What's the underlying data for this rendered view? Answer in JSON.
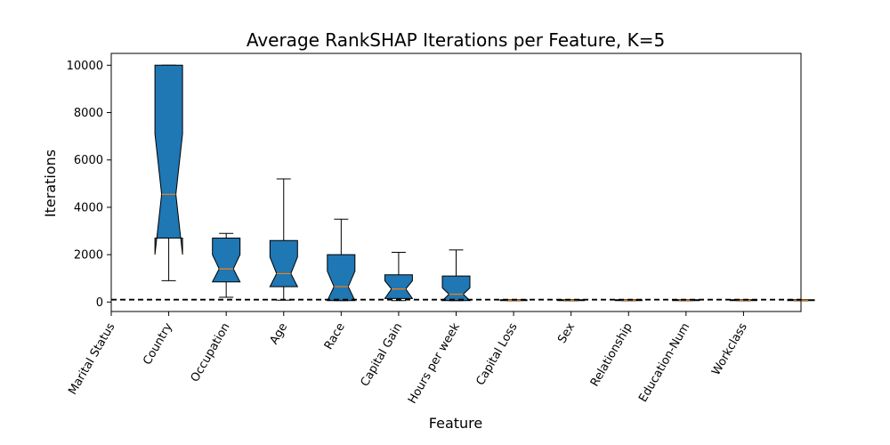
{
  "chart_data": {
    "type": "boxplot",
    "title": "Average RankSHAP Iterations per Feature, K=5",
    "xlabel": "Feature",
    "ylabel": "Iterations",
    "ylim": [
      -400,
      10500
    ],
    "yticks": [
      0,
      2000,
      4000,
      6000,
      8000,
      10000
    ],
    "reference_line": {
      "y": 100,
      "style": "dashed",
      "color": "#000000"
    },
    "categories": [
      "Marital Status",
      "Country",
      "Occupation",
      "Age",
      "Race",
      "Capital Gain",
      "Hours per week",
      "Capital Loss",
      "Sex",
      "Relationship",
      "Education-Num",
      "Workclass"
    ],
    "box_color": "#1f77b4",
    "median_color": "#ff7f0e",
    "boxes": [
      {
        "position": 2,
        "whisker_low": 900,
        "q1": 2700,
        "notch_low": 2000,
        "median": 4550,
        "notch_high": 7100,
        "q3": 10000,
        "whisker_high": 10000
      },
      {
        "position": 3,
        "whisker_low": 200,
        "q1": 850,
        "notch_low": 850,
        "median": 1400,
        "notch_high": 2000,
        "q3": 2700,
        "whisker_high": 2900
      },
      {
        "position": 4,
        "whisker_low": 80,
        "q1": 650,
        "notch_low": 650,
        "median": 1200,
        "notch_high": 1900,
        "q3": 2600,
        "whisker_high": 5200
      },
      {
        "position": 5,
        "whisker_low": 60,
        "q1": 60,
        "notch_low": 60,
        "median": 650,
        "notch_high": 1300,
        "q3": 2000,
        "whisker_high": 3500
      },
      {
        "position": 6,
        "whisker_low": 60,
        "q1": 150,
        "notch_low": 150,
        "median": 550,
        "notch_high": 900,
        "q3": 1150,
        "whisker_high": 2100
      },
      {
        "position": 7,
        "whisker_low": 60,
        "q1": 60,
        "notch_low": 60,
        "median": 330,
        "notch_high": 600,
        "q3": 1100,
        "whisker_high": 2200
      },
      {
        "position": 8,
        "whisker_low": 60,
        "q1": 60,
        "notch_low": 60,
        "median": 80,
        "notch_high": 100,
        "q3": 100,
        "whisker_high": 100
      },
      {
        "position": 9,
        "whisker_low": 60,
        "q1": 60,
        "notch_low": 60,
        "median": 80,
        "notch_high": 100,
        "q3": 100,
        "whisker_high": 100
      },
      {
        "position": 10,
        "whisker_low": 60,
        "q1": 60,
        "notch_low": 60,
        "median": 80,
        "notch_high": 100,
        "q3": 100,
        "whisker_high": 100
      },
      {
        "position": 11,
        "whisker_low": 60,
        "q1": 60,
        "notch_low": 60,
        "median": 80,
        "notch_high": 100,
        "q3": 100,
        "whisker_high": 100
      },
      {
        "position": 12,
        "whisker_low": 60,
        "q1": 60,
        "notch_low": 60,
        "median": 80,
        "notch_high": 100,
        "q3": 100,
        "whisker_high": 100
      },
      {
        "position": 13,
        "whisker_low": 60,
        "q1": 60,
        "notch_low": 60,
        "median": 80,
        "notch_high": 100,
        "q3": 100,
        "whisker_high": 100
      }
    ]
  }
}
